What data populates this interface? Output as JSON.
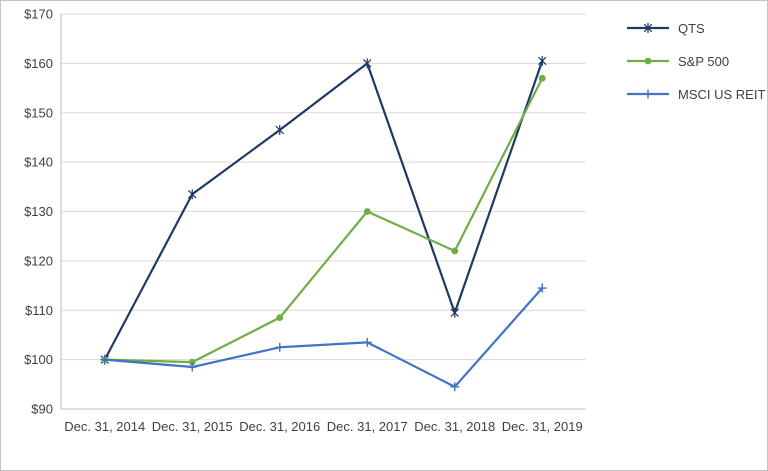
{
  "chart_data": {
    "type": "line",
    "x_labels": [
      "Dec. 31, 2014",
      "Dec. 31, 2015",
      "Dec. 31, 2016",
      "Dec. 31, 2017",
      "Dec. 31, 2018",
      "Dec. 31, 2019"
    ],
    "ylim": [
      90,
      170
    ],
    "y_ticks": [
      {
        "value": 90,
        "label": "$90"
      },
      {
        "value": 100,
        "label": "$100"
      },
      {
        "value": 110,
        "label": "$110"
      },
      {
        "value": 120,
        "label": "$120"
      },
      {
        "value": 130,
        "label": "$130"
      },
      {
        "value": 140,
        "label": "$140"
      },
      {
        "value": 150,
        "label": "$150"
      },
      {
        "value": 160,
        "label": "$160"
      },
      {
        "value": 170,
        "label": "$170"
      }
    ],
    "grid": true,
    "legend_position": "top-right",
    "colors": {
      "grid": "#d9d9d9",
      "axis": "#bfbfbf",
      "tick_text": "#404040"
    },
    "series": [
      {
        "name": "QTS",
        "color": "#1f3864",
        "marker": "star",
        "values": [
          100,
          133.5,
          146.5,
          160,
          109.5,
          160.5
        ]
      },
      {
        "name": "S&P 500",
        "color": "#70ad47",
        "marker": "circle",
        "values": [
          100,
          99.5,
          108.5,
          130,
          122,
          157
        ]
      },
      {
        "name": "MSCI US REIT",
        "color": "#4472c4",
        "marker": "plus",
        "values": [
          100,
          98.5,
          102.5,
          103.5,
          94.5,
          114.5
        ]
      }
    ]
  }
}
